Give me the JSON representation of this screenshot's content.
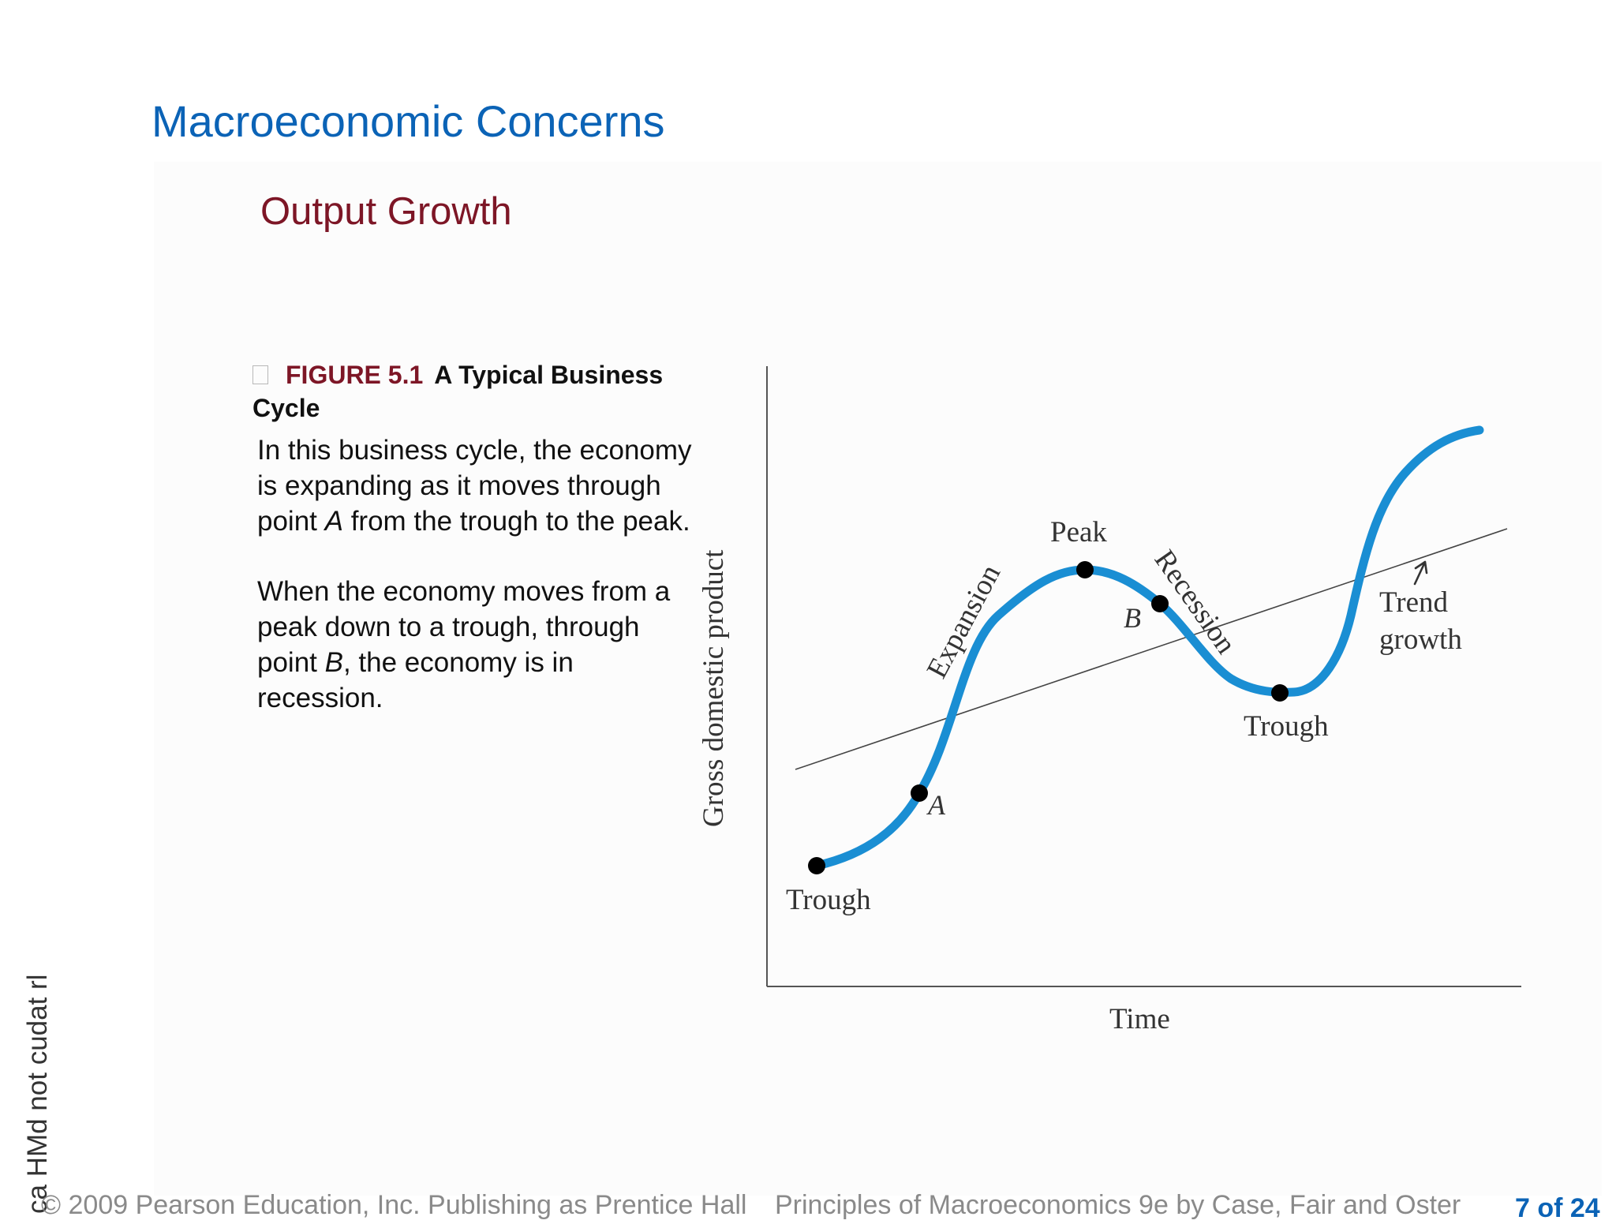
{
  "slide": {
    "title": "Macroeconomic Concerns",
    "subtitle": "Output Growth",
    "figure": {
      "number": "FIGURE 5.1",
      "title": "A Typical Business Cycle",
      "paragraph1_part1": "In this business cycle, the economy is expanding as it moves through point ",
      "point_a": "A",
      "paragraph1_part2": " from the trough to the peak.",
      "paragraph2_part1": "When the economy moves from a peak down to a trough, through point ",
      "point_b": "B",
      "paragraph2_part2": ", the economy is in recession."
    },
    "side_text": "ca HMd  not cudat rl",
    "footer_left": "© 2009 Pearson Education, Inc. Publishing as Prentice Hall",
    "footer_middle": "Principles of Macroeconomics 9e by Case, Fair and Oster",
    "page_indicator": "7 of 24"
  },
  "diagram": {
    "y_axis_label": "Gross domestic product",
    "x_axis_label": "Time",
    "labels": {
      "trough_start": "Trough",
      "point_a": "A",
      "expansion": "Expansion",
      "peak": "Peak",
      "point_b": "B",
      "recession": "Recession",
      "trough_end": "Trough",
      "trend_line1": "Trend",
      "trend_line2": "growth"
    },
    "colors": {
      "curve": "#1a8ed3",
      "trend": "#444444",
      "axes": "#555555",
      "points": "#000000"
    }
  }
}
